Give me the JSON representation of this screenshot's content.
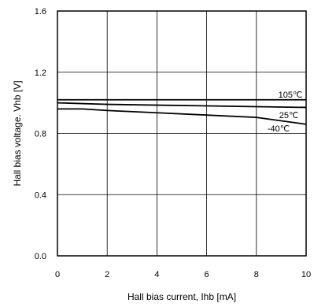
{
  "chart_data": {
    "type": "line",
    "xlabel": "Hall bias current, Ihb [mA]",
    "ylabel": "Hall bias voltage. Vhb [V]",
    "xlim": [
      0,
      10
    ],
    "ylim": [
      0.0,
      1.6
    ],
    "xticks": [
      "0",
      "2",
      "4",
      "6",
      "8",
      "10"
    ],
    "yticks": [
      "0.0",
      "0.4",
      "0.8",
      "1.2",
      "1.6"
    ],
    "grid": true,
    "series": [
      {
        "name": "105℃",
        "x": [
          0,
          2,
          4,
          6,
          8,
          10
        ],
        "y": [
          1.02,
          1.02,
          1.02,
          1.02,
          1.02,
          1.02
        ]
      },
      {
        "name": "25℃",
        "x": [
          0,
          2,
          4,
          6,
          8,
          10
        ],
        "y": [
          1.0,
          0.99,
          0.985,
          0.98,
          0.975,
          0.97
        ]
      },
      {
        "name": "-40℃",
        "x": [
          0,
          1,
          2,
          4,
          6,
          8,
          10
        ],
        "y": [
          0.96,
          0.96,
          0.95,
          0.935,
          0.92,
          0.905,
          0.86
        ]
      }
    ]
  }
}
